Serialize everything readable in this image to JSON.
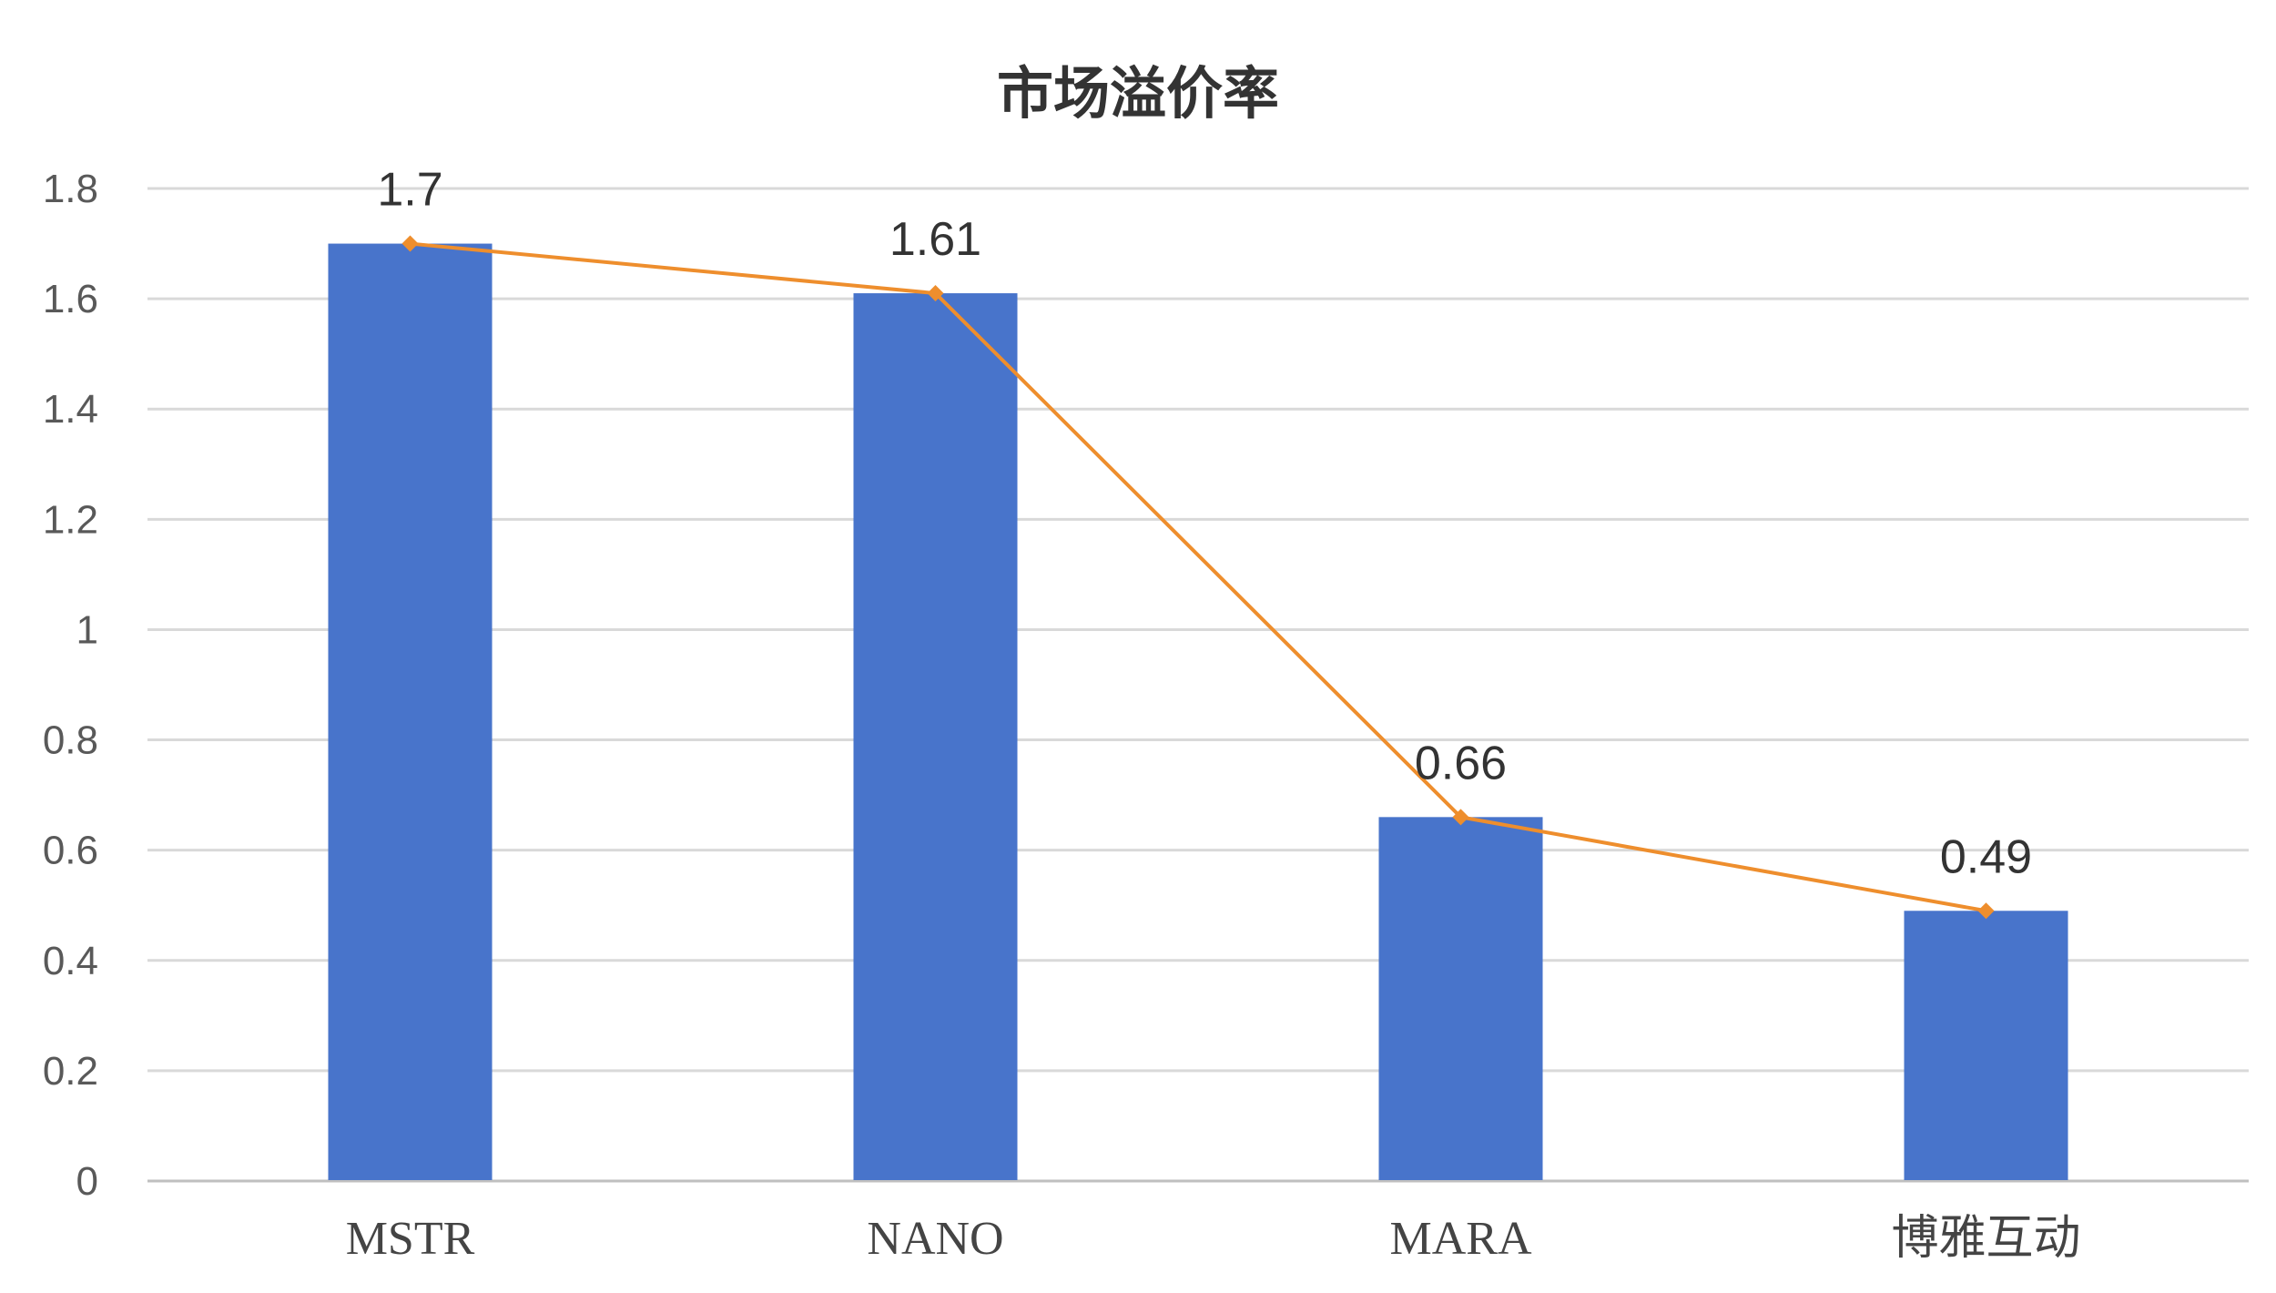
{
  "chart_data": {
    "type": "bar",
    "title": "市场溢价率",
    "categories": [
      "MSTR",
      "NANO",
      "MARA",
      "博雅互动"
    ],
    "values": [
      1.7,
      1.61,
      0.66,
      0.49
    ],
    "value_labels": [
      "1.7",
      "1.61",
      "0.66",
      "0.49"
    ],
    "ylim": [
      0,
      1.8
    ],
    "yticks": [
      0,
      0.2,
      0.4,
      0.6,
      0.8,
      1,
      1.2,
      1.4,
      1.6,
      1.8
    ],
    "ytick_labels": [
      "0",
      "0.2",
      "0.4",
      "0.6",
      "0.8",
      "1",
      "1.2",
      "1.4",
      "1.6",
      "1.8"
    ],
    "grid": true,
    "overlay_line": true,
    "colors": {
      "bar": "#4874CB",
      "line": "#EE8E2D",
      "grid": "#D9D9D9",
      "axis": "#BFBFBF"
    }
  }
}
